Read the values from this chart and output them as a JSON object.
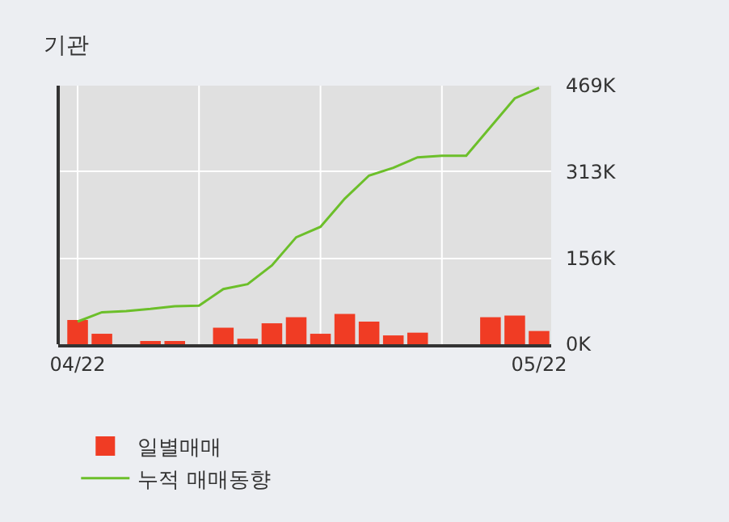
{
  "chart_data": {
    "type": "bar",
    "title": "기관",
    "categories": [
      "04/22",
      null,
      null,
      null,
      null,
      null,
      null,
      null,
      null,
      null,
      null,
      null,
      null,
      null,
      null,
      null,
      null,
      null,
      null,
      "05/22"
    ],
    "series": [
      {
        "name": "일별매매",
        "color": "#f03c24",
        "values": [
          44,
          19,
          0,
          4,
          4,
          0,
          30,
          10,
          38,
          49,
          19,
          55,
          41,
          16,
          21,
          0,
          0,
          49,
          52,
          24
        ]
      },
      {
        "name": "누적 매매동향",
        "type": "line",
        "color": "#6cbf2a",
        "values": [
          41,
          58,
          60,
          64,
          69,
          70,
          100,
          109,
          143,
          194,
          213,
          264,
          306,
          320,
          339,
          342,
          342,
          394,
          446,
          465
        ]
      }
    ],
    "ylim": [
      0,
      469
    ],
    "yticks": [
      {
        "value": 0,
        "label": "0K"
      },
      {
        "value": 156,
        "label": "156K"
      },
      {
        "value": 313,
        "label": "313K"
      },
      {
        "value": 469,
        "label": "469K"
      }
    ],
    "grid": true,
    "legend": "bottom",
    "marker": "none",
    "line_style": "solid"
  }
}
